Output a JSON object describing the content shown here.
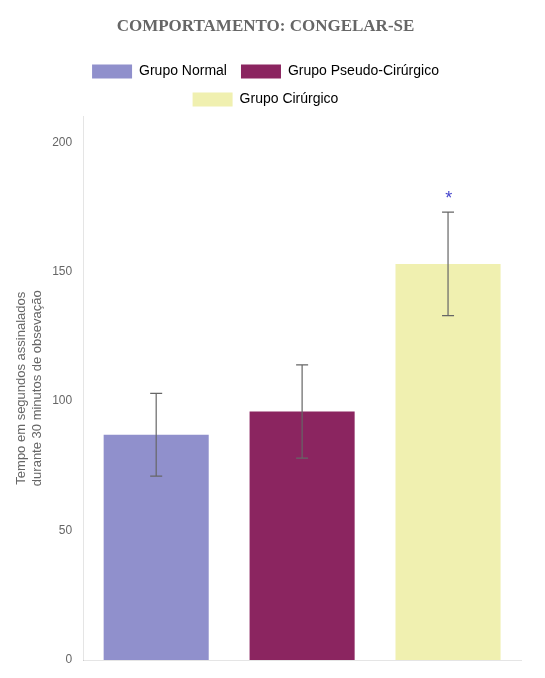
{
  "chart_data": {
    "type": "bar",
    "title": "COMPORTAMENTO: CONGELAR-SE",
    "categories": [
      "Grupo Normal",
      "Grupo Pseudo-Cirúrgico",
      "Grupo Cirúrgico"
    ],
    "values": [
      87,
      96,
      153
    ],
    "errors": [
      16,
      18,
      20
    ],
    "colors": [
      "#9090cc",
      "#8b2560",
      "#f0f0b0"
    ],
    "ylabel": "Tempo em segundos assinalados\ndurante 30 minutos de obsevação",
    "ylim": [
      0,
      210
    ],
    "yticks": [
      0,
      50,
      100,
      150,
      200
    ],
    "grid": false,
    "legend": "top",
    "tick_labels": "y",
    "annotations": [
      {
        "text": "*",
        "category": "Grupo Cirúrgico",
        "color": "#4444cc"
      }
    ]
  }
}
